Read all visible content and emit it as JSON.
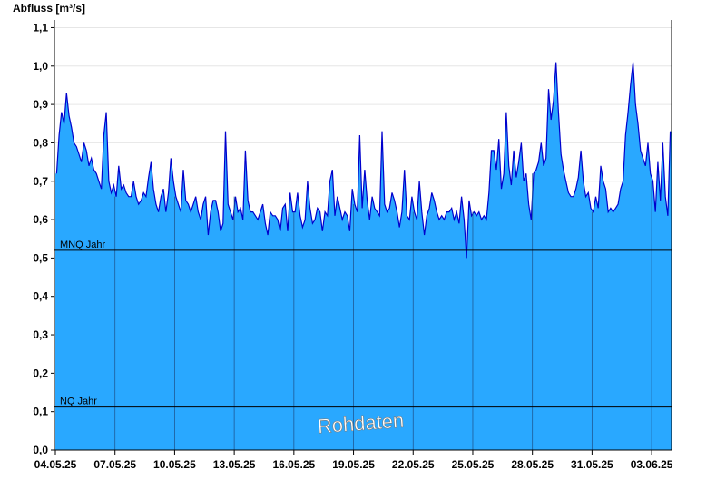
{
  "chart_data": {
    "type": "area",
    "ylabel": "Abfluss [m³/s]",
    "ylim": [
      0,
      1.12
    ],
    "yticks": [
      "0,0",
      "0,1",
      "0,2",
      "0,3",
      "0,4",
      "0,5",
      "0,6",
      "0,7",
      "0,8",
      "0,9",
      "1,0",
      "1,1"
    ],
    "ytick_values": [
      0,
      0.1,
      0.2,
      0.3,
      0.4,
      0.5,
      0.6,
      0.7,
      0.8,
      0.9,
      1.0,
      1.1
    ],
    "x_start": "04.05.25",
    "x_end": "03.06.25",
    "xticks": [
      "04.05.25",
      "07.05.25",
      "10.05.25",
      "13.05.25",
      "16.05.25",
      "19.05.25",
      "22.05.25",
      "25.05.25",
      "28.05.25",
      "31.05.25",
      "03.06.25"
    ],
    "xtick_days": [
      0,
      3,
      6,
      9,
      12,
      15,
      18,
      21,
      24,
      27,
      30
    ],
    "day_span": 31,
    "grid": true,
    "reference_lines": [
      {
        "label": "MNQ Jahr",
        "value": 0.52
      },
      {
        "label": "NQ Jahr",
        "value": 0.112
      }
    ],
    "watermark": "Rohdaten",
    "colors": {
      "fill": "#29a8ff",
      "line": "#0000cc",
      "reference": "#000000",
      "vgrid": "#1e5a96",
      "hgrid": "#e6e6e6"
    },
    "series": [
      {
        "values_by_day": [
          [
            0.72,
            0.82,
            0.88,
            0.85,
            0.93,
            0.87,
            0.84,
            0.8
          ],
          [
            0.79,
            0.77,
            0.75,
            0.8,
            0.78,
            0.74,
            0.76,
            0.73
          ],
          [
            0.72,
            0.7,
            0.68,
            0.82,
            0.88,
            0.7,
            0.67,
            0.69
          ],
          [
            0.66,
            0.74,
            0.68,
            0.69,
            0.67,
            0.66,
            0.66,
            0.7
          ],
          [
            0.66,
            0.64,
            0.65,
            0.67,
            0.66,
            0.71,
            0.75,
            0.68
          ],
          [
            0.64,
            0.62,
            0.66,
            0.68,
            0.62,
            0.67,
            0.76,
            0.7
          ],
          [
            0.66,
            0.64,
            0.62,
            0.73,
            0.65,
            0.64,
            0.62,
            0.64
          ],
          [
            0.66,
            0.62,
            0.6,
            0.64,
            0.66,
            0.56,
            0.62,
            0.65
          ],
          [
            0.65,
            0.62,
            0.57,
            0.59,
            0.83,
            0.64,
            0.62,
            0.6
          ],
          [
            0.66,
            0.62,
            0.63,
            0.6,
            0.78,
            0.65,
            0.62,
            0.62
          ],
          [
            0.61,
            0.6,
            0.62,
            0.64,
            0.59,
            0.56,
            0.62,
            0.61
          ],
          [
            0.61,
            0.6,
            0.57,
            0.63,
            0.64,
            0.57,
            0.67,
            0.62
          ],
          [
            0.62,
            0.67,
            0.61,
            0.58,
            0.6,
            0.7,
            0.63,
            0.59
          ],
          [
            0.6,
            0.63,
            0.62,
            0.57,
            0.62,
            0.61,
            0.7,
            0.73
          ],
          [
            0.61,
            0.66,
            0.63,
            0.6,
            0.62,
            0.61,
            0.57,
            0.68
          ],
          [
            0.64,
            0.62,
            0.82,
            0.63,
            0.73,
            0.65,
            0.6,
            0.66
          ],
          [
            0.63,
            0.62,
            0.61,
            0.83,
            0.64,
            0.62,
            0.63,
            0.67
          ],
          [
            0.65,
            0.62,
            0.58,
            0.62,
            0.73,
            0.61,
            0.6,
            0.66
          ],
          [
            0.62,
            0.6,
            0.7,
            0.62,
            0.56,
            0.61,
            0.63,
            0.67
          ],
          [
            0.65,
            0.62,
            0.6,
            0.61,
            0.6,
            0.62,
            0.62,
            0.63
          ],
          [
            0.6,
            0.62,
            0.59,
            0.66,
            0.6,
            0.5,
            0.65,
            0.61
          ],
          [
            0.62,
            0.61,
            0.62,
            0.6,
            0.61,
            0.6,
            0.67,
            0.78
          ],
          [
            0.78,
            0.73,
            0.81,
            0.68,
            0.72,
            0.88,
            0.74,
            0.69
          ],
          [
            0.78,
            0.71,
            0.75,
            0.8,
            0.7,
            0.72,
            0.64,
            0.6
          ],
          [
            0.72,
            0.73,
            0.75,
            0.8,
            0.74,
            0.76,
            0.94,
            0.86
          ],
          [
            0.91,
            1.01,
            0.88,
            0.77,
            0.73,
            0.7,
            0.67,
            0.66
          ],
          [
            0.66,
            0.68,
            0.71,
            0.78,
            0.7,
            0.66,
            0.67,
            0.63
          ],
          [
            0.62,
            0.66,
            0.63,
            0.74,
            0.7,
            0.68,
            0.62,
            0.63
          ],
          [
            0.62,
            0.63,
            0.64,
            0.68,
            0.7,
            0.82,
            0.88,
            0.95
          ],
          [
            1.01,
            0.9,
            0.85,
            0.78,
            0.76,
            0.74,
            0.8,
            0.72
          ],
          [
            0.7,
            0.62,
            0.75,
            0.65,
            0.8,
            0.66,
            0.61,
            0.83
          ]
        ]
      }
    ]
  }
}
